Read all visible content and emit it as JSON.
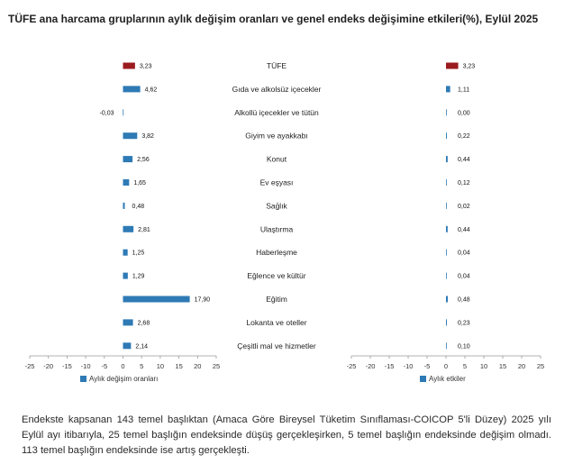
{
  "title": "TÜFE ana harcama gruplarının aylık değişim oranları ve genel endeks değişimine etkileri(%), Eylül 2025",
  "colors": {
    "highlight": "#9b1b1f",
    "bar": "#2e7ab5",
    "axis": "#9a9a9a"
  },
  "chart_data": [
    {
      "type": "bar",
      "orientation": "horizontal",
      "title": "",
      "legend": "Aylık değişim oranları",
      "legend_position": "bottom-left",
      "categories": [
        "TÜFE",
        "Gıda ve alkolsüz içecekler",
        "Alkollü içecekler ve tütün",
        "Giyim ve ayakkabı",
        "Konut",
        "Ev eşyası",
        "Sağlık",
        "Ulaştırma",
        "Haberleşme",
        "Eğlence ve kültür",
        "Eğitim",
        "Lokanta ve oteller",
        "Çeşitli mal ve hizmetler"
      ],
      "values": [
        3.23,
        4.62,
        -0.03,
        3.82,
        2.56,
        1.65,
        0.48,
        2.81,
        1.25,
        1.29,
        17.9,
        2.68,
        2.14
      ],
      "labels": [
        "3,23",
        "4,62",
        "-0,03",
        "3,82",
        "2,56",
        "1,65",
        "0,48",
        "2,81",
        "1,25",
        "1,29",
        "17,90",
        "2,68",
        "2,14"
      ],
      "xlim": [
        -25,
        25
      ],
      "xticks": [
        "-25",
        "-20",
        "-15",
        "-10",
        "-5",
        "0",
        "5",
        "10",
        "15",
        "20",
        "25"
      ],
      "grid": false
    },
    {
      "type": "bar",
      "orientation": "horizontal",
      "title": "",
      "legend": "Aylık etkiler",
      "legend_position": "bottom-left",
      "values": [
        3.23,
        1.11,
        0.0,
        0.22,
        0.44,
        0.12,
        0.02,
        0.44,
        0.04,
        0.04,
        0.48,
        0.23,
        0.1
      ],
      "labels": [
        "3,23",
        "1,11",
        "0,00",
        "0,22",
        "0,44",
        "0,12",
        "0,02",
        "0,44",
        "0,04",
        "0,04",
        "0,48",
        "0,23",
        "0,10"
      ],
      "xlim": [
        -25,
        25
      ],
      "xticks": [
        "-25",
        "-20",
        "-15",
        "-10",
        "-5",
        "0",
        "5",
        "10",
        "15",
        "20",
        "25"
      ],
      "grid": false
    }
  ],
  "footnote": "Endekste kapsanan 143 temel başlıktan (Amaca Göre Bireysel Tüketim Sınıflaması-COICOP 5'li Düzey) 2025 yılı Eylül ayı itibarıyla, 25 temel başlığın endeksinde düşüş gerçekleşirken, 5 temel başlığın endeksinde değişim olmadı. 113 temel başlığın endeksinde ise artış gerçekleşti."
}
